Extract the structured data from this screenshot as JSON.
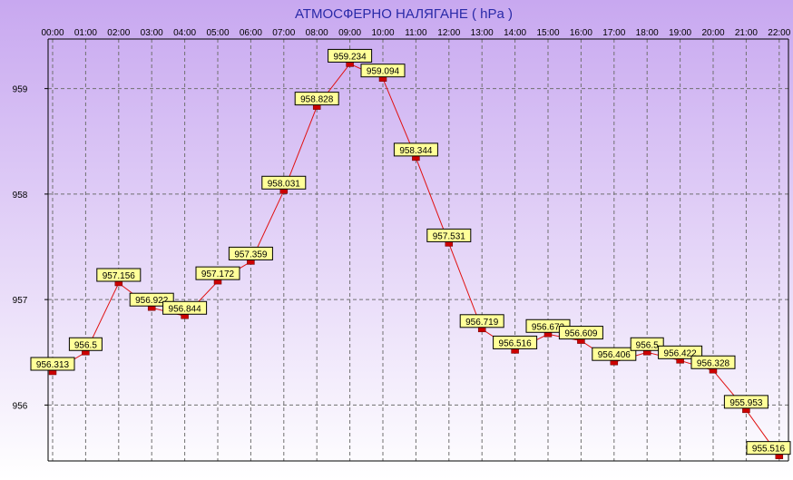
{
  "colors": {
    "background_top": "#c8a8f0",
    "background_bottom": "#ffffff",
    "line": "#e01010",
    "marker": "#cc0000",
    "label_fill": "#ffff99",
    "title": "#2a2aa8",
    "grid": "#707070"
  },
  "chart_data": {
    "type": "line",
    "title": "АТМОСФЕРНО НАЛЯГАНЕ  ( hPa )",
    "xlabel": "",
    "ylabel": "",
    "categories": [
      "00:00",
      "01:00",
      "02:00",
      "03:00",
      "04:00",
      "05:00",
      "06:00",
      "07:00",
      "08:00",
      "09:00",
      "10:00",
      "11:00",
      "12:00",
      "13:00",
      "14:00",
      "15:00",
      "16:00",
      "17:00",
      "18:00",
      "19:00",
      "20:00",
      "21:00",
      "22:00"
    ],
    "y_ticks": [
      "956",
      "957",
      "958",
      "959"
    ],
    "ylim": [
      955.47,
      959.47
    ],
    "grid": true,
    "legend": "none",
    "series": [
      {
        "values": [
          956.313,
          956.5,
          957.156,
          956.922,
          956.844,
          957.172,
          957.359,
          958.031,
          958.828,
          959.234,
          959.094,
          958.344,
          957.531,
          956.719,
          956.516,
          956.672,
          956.609,
          956.406,
          956.5,
          956.422,
          956.328,
          955.953,
          955.516
        ],
        "labels": [
          "956.313",
          "956.5",
          "957.156",
          "956.922",
          "956.844",
          "957.172",
          "957.359",
          "958.031",
          "958.828",
          "959.234",
          "959.094",
          "958.344",
          "957.531",
          "956.719",
          "956.516",
          "956.672",
          "956.609",
          "956.406",
          "956.5",
          "956.422",
          "956.328",
          "955.953",
          "955.516"
        ]
      }
    ]
  }
}
